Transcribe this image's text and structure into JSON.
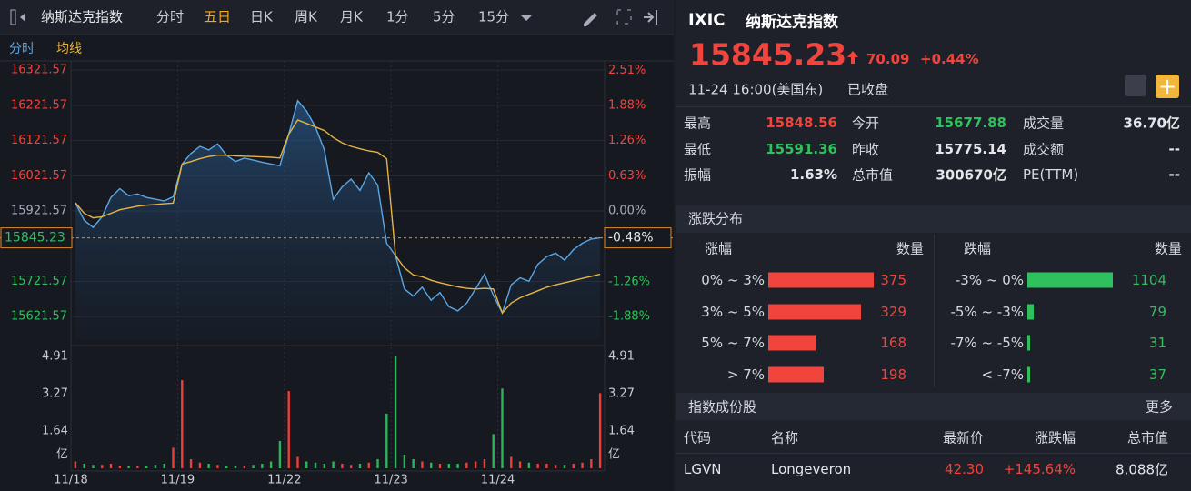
{
  "toolbar": {
    "title": "纳斯达克指数",
    "tabs": [
      "分时",
      "五日",
      "日K",
      "周K",
      "月K",
      "1分",
      "5分",
      "15分"
    ],
    "active_tab": 1
  },
  "chart_data": [
    {
      "type": "line",
      "categories": [
        "11/18",
        null,
        null,
        null,
        null,
        null,
        null,
        null,
        null,
        null,
        null,
        null,
        "11/19",
        null,
        null,
        null,
        null,
        null,
        null,
        null,
        null,
        null,
        null,
        null,
        "11/22",
        null,
        null,
        null,
        null,
        null,
        null,
        null,
        null,
        null,
        null,
        null,
        "11/23",
        null,
        null,
        null,
        null,
        null,
        null,
        null,
        null,
        null,
        null,
        null,
        "11/24",
        null,
        null,
        null,
        null,
        null,
        null,
        null,
        null,
        null,
        null,
        null
      ],
      "series": [
        {
          "name": "分时",
          "color": "#5aa7e6",
          "values": [
            15945,
            15895,
            15875,
            15905,
            15960,
            15985,
            15965,
            15970,
            15960,
            15955,
            15950,
            15962,
            16055,
            16085,
            16105,
            16095,
            16112,
            16080,
            16062,
            16072,
            16066,
            16060,
            16055,
            16050,
            16140,
            16235,
            16205,
            16160,
            16095,
            15955,
            15990,
            16012,
            15980,
            16030,
            15995,
            15830,
            15795,
            15700,
            15680,
            15705,
            15668,
            15690,
            15650,
            15638,
            15660,
            15700,
            15742,
            15682,
            15632,
            15712,
            15732,
            15722,
            15770,
            15792,
            15802,
            15782,
            15812,
            15830,
            15842,
            15845.23
          ]
        },
        {
          "name": "均线",
          "color": "#e6b445",
          "values": [
            15945,
            15915,
            15902,
            15905,
            15915,
            15925,
            15930,
            15935,
            15938,
            15940,
            15942,
            15944,
            16055,
            16062,
            16070,
            16076,
            16080,
            16080,
            16078,
            16077,
            16076,
            16075,
            16074,
            16072,
            16140,
            16180,
            16170,
            16160,
            16150,
            16130,
            16115,
            16105,
            16098,
            16092,
            16088,
            16070,
            15795,
            15760,
            15740,
            15735,
            15725,
            15718,
            15712,
            15706,
            15702,
            15700,
            15702,
            15700,
            15632,
            15660,
            15675,
            15685,
            15695,
            15705,
            15712,
            15718,
            15724,
            15730,
            15736,
            15742
          ]
        }
      ],
      "ylim": [
        15555,
        16340
      ],
      "yticks": [
        16321.57,
        16221.57,
        16121.57,
        16021.57,
        15921.57,
        15721.57,
        15621.57
      ],
      "y2lim": [
        -2.3,
        2.63
      ],
      "y2ticks": [
        {
          "value": 2.51,
          "label": "2.51%"
        },
        {
          "value": 1.88,
          "label": "1.88%"
        },
        {
          "value": 1.26,
          "label": "1.26%"
        },
        {
          "value": 0.63,
          "label": "0.63%"
        },
        {
          "value": 0,
          "label": "0.00%"
        },
        {
          "value": -1.26,
          "label": "-1.26%"
        },
        {
          "value": -1.88,
          "label": "-1.88%"
        }
      ],
      "current": {
        "value": 15845.23,
        "pct": {
          "value": -0.48,
          "label": "-0.48%"
        }
      },
      "grid": true
    },
    {
      "type": "bar",
      "values": [
        0.3,
        0.2,
        0.15,
        0.15,
        0.2,
        0.12,
        0.1,
        0.1,
        0.12,
        0.15,
        0.2,
        0.9,
        3.87,
        0.4,
        0.25,
        0.2,
        0.15,
        0.12,
        0.1,
        0.12,
        0.15,
        0.2,
        0.3,
        1.2,
        3.39,
        0.5,
        0.3,
        0.25,
        0.2,
        0.3,
        0.2,
        0.15,
        0.2,
        0.25,
        0.4,
        2.4,
        4.91,
        0.6,
        0.4,
        0.3,
        0.25,
        0.2,
        0.2,
        0.2,
        0.25,
        0.3,
        0.4,
        1.5,
        3.5,
        0.5,
        0.3,
        0.25,
        0.2,
        0.2,
        0.15,
        0.15,
        0.2,
        0.25,
        0.4,
        3.3
      ],
      "ylim": [
        0,
        5.19
      ],
      "yticks": [
        4.91,
        3.27,
        1.64
      ],
      "unit": "亿",
      "up_color": "#e8403a",
      "down_color": "#2bb55a"
    }
  ],
  "quote": {
    "code": "IXIC",
    "name": "纳斯达克指数",
    "price": "15845.23",
    "change": "70.09",
    "change_pct": "+0.44%",
    "time": "11-24 16:00(美国东)",
    "status": "已收盘"
  },
  "stats": [
    {
      "label": "最高",
      "value": "15848.56",
      "color": "#f0443c"
    },
    {
      "label": "今开",
      "value": "15677.88",
      "color": "#2fc15e"
    },
    {
      "label": "成交量",
      "value": "36.70亿"
    },
    {
      "label": "最低",
      "value": "15591.36",
      "color": "#2fc15e"
    },
    {
      "label": "昨收",
      "value": "15775.14"
    },
    {
      "label": "成交额",
      "value": "--"
    },
    {
      "label": "振幅",
      "value": "1.63%"
    },
    {
      "label": "总市值",
      "value": "300670亿"
    },
    {
      "label": "PE(TTM)",
      "value": "--"
    }
  ],
  "distribution": {
    "title": "涨跌分布",
    "up_header": "涨幅",
    "down_header": "跌幅",
    "count_header": "数量",
    "up_color": "#f0443c",
    "down_color": "#2fc15e",
    "up": [
      {
        "label": "0% ~ 3%",
        "count": 375
      },
      {
        "label": "3% ~ 5%",
        "count": 329
      },
      {
        "label": "5% ~ 7%",
        "count": 168
      },
      {
        "label": "> 7%",
        "count": 198
      }
    ],
    "down": [
      {
        "label": "-3% ~ 0%",
        "count": 1104
      },
      {
        "label": "-5% ~ -3%",
        "count": 79
      },
      {
        "label": "-7% ~ -5%",
        "count": 31
      },
      {
        "label": "< -7%",
        "count": 37
      }
    ]
  },
  "constituents": {
    "title": "指数成份股",
    "more": "更多",
    "columns": [
      "代码",
      "名称",
      "最新价",
      "涨跌幅",
      "总市值"
    ],
    "rows": [
      [
        "LGVN",
        "Longeveron",
        "42.30",
        "+145.64%",
        "8.088亿"
      ]
    ]
  }
}
